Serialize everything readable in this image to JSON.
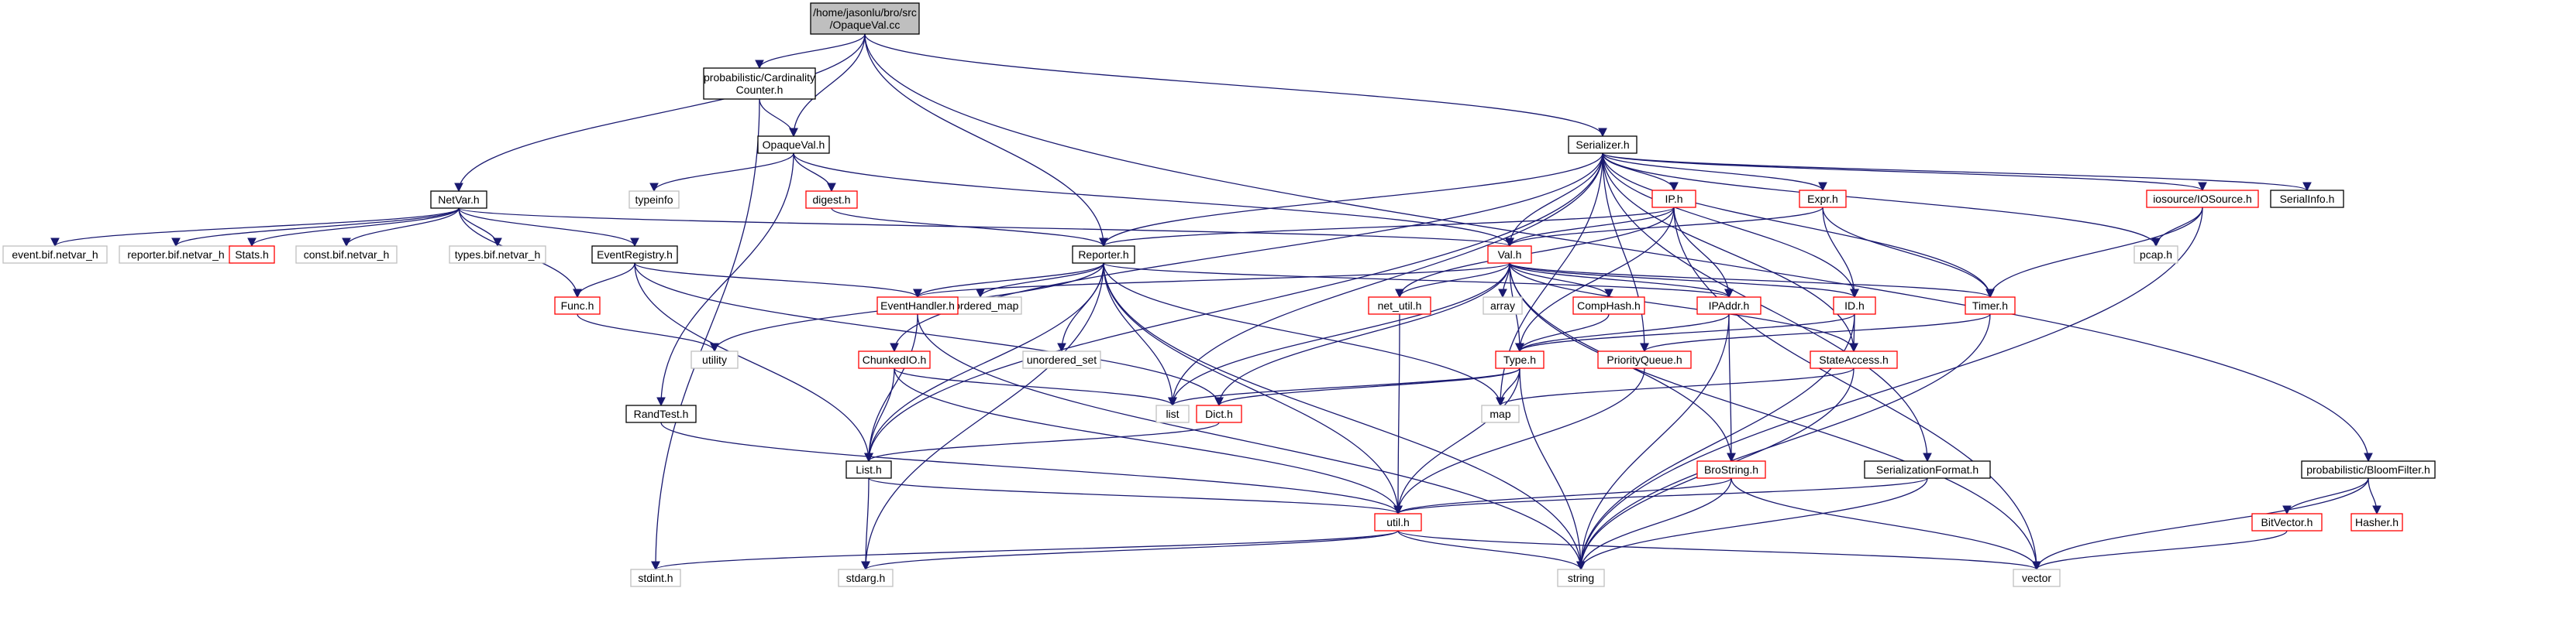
{
  "colors": {
    "edge": "#191970",
    "normal_border": "#000000",
    "missing_border": "#ff0000",
    "external_border": "#bfbfbf",
    "root_fill": "#bfbfbf",
    "fill": "#ffffff"
  },
  "nodes": [
    {
      "id": "root",
      "lines": [
        "/home/jasonlu/bro/src",
        "/OpaqueVal.cc"
      ],
      "style": "root"
    },
    {
      "id": "cardinality",
      "lines": [
        "probabilistic/Cardinality",
        "Counter.h"
      ],
      "style": "normal"
    },
    {
      "id": "opaqueval_h",
      "lines": [
        "OpaqueVal.h"
      ],
      "style": "normal"
    },
    {
      "id": "netvar",
      "lines": [
        "NetVar.h"
      ],
      "style": "normal"
    },
    {
      "id": "serializer",
      "lines": [
        "Serializer.h"
      ],
      "style": "normal"
    },
    {
      "id": "bloomfilter",
      "lines": [
        "probabilistic/BloomFilter.h"
      ],
      "style": "normal"
    },
    {
      "id": "typeinfo",
      "lines": [
        "typeinfo"
      ],
      "style": "external"
    },
    {
      "id": "digest",
      "lines": [
        "digest.h"
      ],
      "style": "missing"
    },
    {
      "id": "event_bif",
      "lines": [
        "event.bif.netvar_h"
      ],
      "style": "external"
    },
    {
      "id": "reporter_bif",
      "lines": [
        "reporter.bif.netvar_h"
      ],
      "style": "external"
    },
    {
      "id": "stats",
      "lines": [
        "Stats.h"
      ],
      "style": "missing"
    },
    {
      "id": "const_bif",
      "lines": [
        "const.bif.netvar_h"
      ],
      "style": "external"
    },
    {
      "id": "types_bif",
      "lines": [
        "types.bif.netvar_h"
      ],
      "style": "external"
    },
    {
      "id": "eventregistry",
      "lines": [
        "EventRegistry.h"
      ],
      "style": "normal"
    },
    {
      "id": "func",
      "lines": [
        "Func.h"
      ],
      "style": "missing"
    },
    {
      "id": "utility",
      "lines": [
        "utility"
      ],
      "style": "external"
    },
    {
      "id": "reporter_h",
      "lines": [
        "Reporter.h"
      ],
      "style": "normal"
    },
    {
      "id": "unordered_map",
      "lines": [
        "unordered_map"
      ],
      "style": "external"
    },
    {
      "id": "eventhandler",
      "lines": [
        "EventHandler.h"
      ],
      "style": "missing"
    },
    {
      "id": "unordered_set",
      "lines": [
        "unordered_set"
      ],
      "style": "external"
    },
    {
      "id": "chunkedio",
      "lines": [
        "ChunkedIO.h"
      ],
      "style": "missing"
    },
    {
      "id": "randtest",
      "lines": [
        "RandTest.h"
      ],
      "style": "normal"
    },
    {
      "id": "list_std",
      "lines": [
        "list"
      ],
      "style": "external"
    },
    {
      "id": "dict",
      "lines": [
        "Dict.h"
      ],
      "style": "missing"
    },
    {
      "id": "list_h",
      "lines": [
        "List.h"
      ],
      "style": "normal"
    },
    {
      "id": "stdint",
      "lines": [
        "stdint.h"
      ],
      "style": "external"
    },
    {
      "id": "stdarg",
      "lines": [
        "stdarg.h"
      ],
      "style": "external"
    },
    {
      "id": "util",
      "lines": [
        "util.h"
      ],
      "style": "missing"
    },
    {
      "id": "string",
      "lines": [
        "string"
      ],
      "style": "external"
    },
    {
      "id": "vector",
      "lines": [
        "vector"
      ],
      "style": "external"
    },
    {
      "id": "ip_h",
      "lines": [
        "IP.h"
      ],
      "style": "missing"
    },
    {
      "id": "expr",
      "lines": [
        "Expr.h"
      ],
      "style": "missing"
    },
    {
      "id": "val",
      "lines": [
        "Val.h"
      ],
      "style": "missing"
    },
    {
      "id": "net_util",
      "lines": [
        "net_util.h"
      ],
      "style": "missing"
    },
    {
      "id": "array",
      "lines": [
        "array"
      ],
      "style": "external"
    },
    {
      "id": "comphash",
      "lines": [
        "CompHash.h"
      ],
      "style": "missing"
    },
    {
      "id": "ipaddr",
      "lines": [
        "IPAddr.h"
      ],
      "style": "missing"
    },
    {
      "id": "type_h",
      "lines": [
        "Type.h"
      ],
      "style": "missing"
    },
    {
      "id": "priorityqueue",
      "lines": [
        "PriorityQueue.h"
      ],
      "style": "missing"
    },
    {
      "id": "map",
      "lines": [
        "map"
      ],
      "style": "external"
    },
    {
      "id": "id_h",
      "lines": [
        "ID.h"
      ],
      "style": "missing"
    },
    {
      "id": "stateaccess",
      "lines": [
        "StateAccess.h"
      ],
      "style": "missing"
    },
    {
      "id": "timer",
      "lines": [
        "Timer.h"
      ],
      "style": "missing"
    },
    {
      "id": "iosource",
      "lines": [
        "iosource/IOSource.h"
      ],
      "style": "missing"
    },
    {
      "id": "pcap",
      "lines": [
        "pcap.h"
      ],
      "style": "external"
    },
    {
      "id": "serialinfo",
      "lines": [
        "SerialInfo.h"
      ],
      "style": "normal"
    },
    {
      "id": "brostring",
      "lines": [
        "BroString.h"
      ],
      "style": "missing"
    },
    {
      "id": "serializationformat",
      "lines": [
        "SerializationFormat.h"
      ],
      "style": "normal"
    },
    {
      "id": "bitvector",
      "lines": [
        "BitVector.h"
      ],
      "style": "missing"
    },
    {
      "id": "hasher",
      "lines": [
        "Hasher.h"
      ],
      "style": "missing"
    }
  ],
  "edges": [
    [
      "root",
      "cardinality"
    ],
    [
      "root",
      "opaqueval_h"
    ],
    [
      "root",
      "netvar"
    ],
    [
      "root",
      "serializer"
    ],
    [
      "root",
      "bloomfilter"
    ],
    [
      "root",
      "reporter_h"
    ],
    [
      "cardinality",
      "opaqueval_h"
    ],
    [
      "cardinality",
      "stdint"
    ],
    [
      "opaqueval_h",
      "typeinfo"
    ],
    [
      "opaqueval_h",
      "digest"
    ],
    [
      "opaqueval_h",
      "val"
    ],
    [
      "opaqueval_h",
      "randtest"
    ],
    [
      "digest",
      "reporter_h"
    ],
    [
      "netvar",
      "event_bif"
    ],
    [
      "netvar",
      "reporter_bif"
    ],
    [
      "netvar",
      "stats"
    ],
    [
      "netvar",
      "const_bif"
    ],
    [
      "netvar",
      "types_bif"
    ],
    [
      "netvar",
      "eventregistry"
    ],
    [
      "netvar",
      "func"
    ],
    [
      "netvar",
      "val"
    ],
    [
      "eventregistry",
      "func"
    ],
    [
      "eventregistry",
      "eventhandler"
    ],
    [
      "eventregistry",
      "list_h"
    ],
    [
      "eventregistry",
      "dict"
    ],
    [
      "func",
      "utility"
    ],
    [
      "reporter_h",
      "utility"
    ],
    [
      "reporter_h",
      "unordered_map"
    ],
    [
      "reporter_h",
      "eventhandler"
    ],
    [
      "reporter_h",
      "unordered_set"
    ],
    [
      "reporter_h",
      "list_std"
    ],
    [
      "reporter_h",
      "list_h"
    ],
    [
      "reporter_h",
      "util"
    ],
    [
      "reporter_h",
      "string"
    ],
    [
      "reporter_h",
      "stdarg"
    ],
    [
      "reporter_h",
      "map"
    ],
    [
      "reporter_h",
      "ipaddr"
    ],
    [
      "eventhandler",
      "list_h"
    ],
    [
      "eventhandler",
      "string"
    ],
    [
      "chunkedio",
      "list_h"
    ],
    [
      "chunkedio",
      "util"
    ],
    [
      "chunkedio",
      "list_std"
    ],
    [
      "randtest",
      "util"
    ],
    [
      "dict",
      "list_h"
    ],
    [
      "list_h",
      "stdarg"
    ],
    [
      "list_h",
      "util"
    ],
    [
      "util",
      "stdint"
    ],
    [
      "util",
      "stdarg"
    ],
    [
      "util",
      "string"
    ],
    [
      "util",
      "vector"
    ],
    [
      "serializer",
      "ip_h"
    ],
    [
      "serializer",
      "expr"
    ],
    [
      "serializer",
      "val"
    ],
    [
      "serializer",
      "reporter_h"
    ],
    [
      "serializer",
      "chunkedio"
    ],
    [
      "serializer",
      "list_h"
    ],
    [
      "serializer",
      "list_std"
    ],
    [
      "serializer",
      "id_h"
    ],
    [
      "serializer",
      "timer"
    ],
    [
      "serializer",
      "iosource"
    ],
    [
      "serializer",
      "serialinfo"
    ],
    [
      "serializer",
      "pcap"
    ],
    [
      "serializer",
      "serializationformat"
    ],
    [
      "serializer",
      "stateaccess"
    ],
    [
      "serializer",
      "map"
    ],
    [
      "serializer",
      "priorityqueue"
    ],
    [
      "ip_h",
      "reporter_h"
    ],
    [
      "ip_h",
      "val"
    ],
    [
      "ip_h",
      "ipaddr"
    ],
    [
      "ip_h",
      "net_util"
    ],
    [
      "ip_h",
      "type_h"
    ],
    [
      "ip_h",
      "vector"
    ],
    [
      "expr",
      "val"
    ],
    [
      "expr",
      "id_h"
    ],
    [
      "expr",
      "timer"
    ],
    [
      "val",
      "net_util"
    ],
    [
      "val",
      "array"
    ],
    [
      "val",
      "comphash"
    ],
    [
      "val",
      "ipaddr"
    ],
    [
      "val",
      "type_h"
    ],
    [
      "val",
      "id_h"
    ],
    [
      "val",
      "timer"
    ],
    [
      "val",
      "stateaccess"
    ],
    [
      "val",
      "dict"
    ],
    [
      "val",
      "list_std"
    ],
    [
      "val",
      "vector"
    ],
    [
      "val",
      "brostring"
    ],
    [
      "val",
      "eventhandler"
    ],
    [
      "net_util",
      "util"
    ],
    [
      "comphash",
      "type_h"
    ],
    [
      "ipaddr",
      "type_h"
    ],
    [
      "ipaddr",
      "brostring"
    ],
    [
      "ipaddr",
      "string"
    ],
    [
      "type_h",
      "list_std"
    ],
    [
      "type_h",
      "map"
    ],
    [
      "type_h",
      "string"
    ],
    [
      "type_h",
      "dict"
    ],
    [
      "type_h",
      "util"
    ],
    [
      "priorityqueue",
      "util"
    ],
    [
      "id_h",
      "type_h"
    ],
    [
      "id_h",
      "stateaccess"
    ],
    [
      "id_h",
      "string"
    ],
    [
      "stateaccess",
      "map"
    ],
    [
      "stateaccess",
      "string"
    ],
    [
      "timer",
      "priorityqueue"
    ],
    [
      "timer",
      "string"
    ],
    [
      "iosource",
      "pcap"
    ],
    [
      "iosource",
      "timer"
    ],
    [
      "iosource",
      "string"
    ],
    [
      "brostring",
      "util"
    ],
    [
      "brostring",
      "string"
    ],
    [
      "brostring",
      "vector"
    ],
    [
      "serializationformat",
      "util"
    ],
    [
      "serializationformat",
      "string"
    ],
    [
      "bloomfilter",
      "bitvector"
    ],
    [
      "bloomfilter",
      "hasher"
    ],
    [
      "bloomfilter",
      "vector"
    ],
    [
      "bitvector",
      "vector"
    ]
  ]
}
